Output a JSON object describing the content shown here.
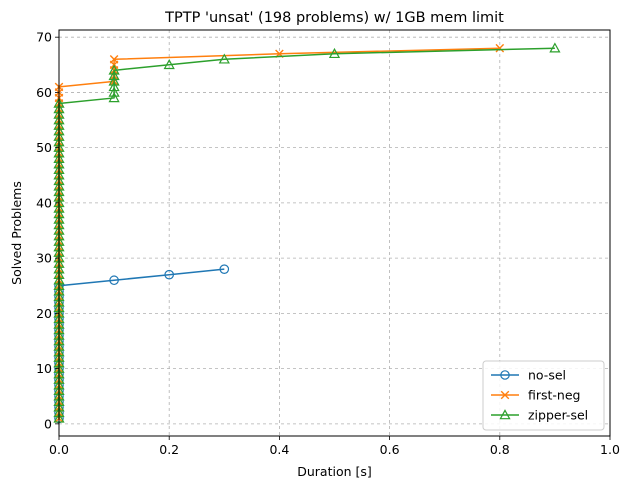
{
  "chart_data": {
    "type": "line",
    "title": "TPTP 'unsat' (198 problems) w/ 1GB mem limit",
    "xlabel": "Duration [s]",
    "ylabel": "Solved Problems",
    "xlim": [
      0.0,
      1.0
    ],
    "ylim": [
      -2.2,
      71.3
    ],
    "xticks": [
      0.0,
      0.2,
      0.4,
      0.6,
      0.8,
      1.0
    ],
    "xtick_labels": [
      "0.0",
      "0.2",
      "0.4",
      "0.6",
      "0.8",
      "1.0"
    ],
    "yticks": [
      0,
      10,
      20,
      30,
      40,
      50,
      60,
      70
    ],
    "ytick_labels": [
      "0",
      "10",
      "20",
      "30",
      "40",
      "50",
      "60",
      "70"
    ],
    "grid": true,
    "legend_position": "lower-right",
    "series": [
      {
        "name": "no-sel",
        "color": "#1f77b4",
        "marker": "circle",
        "x": [
          0,
          0,
          0,
          0,
          0,
          0,
          0,
          0,
          0,
          0,
          0,
          0,
          0,
          0,
          0,
          0,
          0,
          0,
          0,
          0,
          0,
          0,
          0,
          0,
          0,
          0.1,
          0.2,
          0.3
        ],
        "y": [
          1,
          2,
          3,
          4,
          5,
          6,
          7,
          8,
          9,
          10,
          11,
          12,
          13,
          14,
          15,
          16,
          17,
          18,
          19,
          20,
          21,
          22,
          23,
          24,
          25,
          26,
          27,
          28
        ]
      },
      {
        "name": "first-neg",
        "color": "#ff7f0e",
        "marker": "x",
        "x": [
          0,
          0,
          0,
          0,
          0,
          0,
          0,
          0,
          0,
          0,
          0,
          0,
          0,
          0,
          0,
          0,
          0,
          0,
          0,
          0,
          0,
          0,
          0,
          0,
          0,
          0,
          0,
          0,
          0,
          0,
          0,
          0,
          0,
          0,
          0,
          0,
          0,
          0,
          0,
          0,
          0,
          0,
          0,
          0,
          0,
          0,
          0,
          0,
          0,
          0,
          0,
          0,
          0,
          0,
          0,
          0,
          0,
          0,
          0,
          0,
          0,
          0.1,
          0.1,
          0.1,
          0.1,
          0.1,
          0.4,
          0.8
        ],
        "y": [
          1,
          2,
          3,
          4,
          5,
          6,
          7,
          8,
          9,
          10,
          11,
          12,
          13,
          14,
          15,
          16,
          17,
          18,
          19,
          20,
          21,
          22,
          23,
          24,
          25,
          26,
          27,
          28,
          29,
          30,
          31,
          32,
          33,
          34,
          35,
          36,
          37,
          38,
          39,
          40,
          41,
          42,
          43,
          44,
          45,
          46,
          47,
          48,
          49,
          50,
          51,
          52,
          53,
          54,
          55,
          56,
          57,
          58,
          59,
          60,
          61,
          62,
          63,
          64,
          65,
          66,
          67,
          68
        ]
      },
      {
        "name": "zipper-sel",
        "color": "#2ca02c",
        "marker": "triangle",
        "x": [
          0,
          0,
          0,
          0,
          0,
          0,
          0,
          0,
          0,
          0,
          0,
          0,
          0,
          0,
          0,
          0,
          0,
          0,
          0,
          0,
          0,
          0,
          0,
          0,
          0,
          0,
          0,
          0,
          0,
          0,
          0,
          0,
          0,
          0,
          0,
          0,
          0,
          0,
          0,
          0,
          0,
          0,
          0,
          0,
          0,
          0,
          0,
          0,
          0,
          0,
          0,
          0,
          0,
          0,
          0,
          0,
          0,
          0,
          0.1,
          0.1,
          0.1,
          0.1,
          0.1,
          0.1,
          0.2,
          0.3,
          0.5,
          0.9
        ],
        "y": [
          1,
          2,
          3,
          4,
          5,
          6,
          7,
          8,
          9,
          10,
          11,
          12,
          13,
          14,
          15,
          16,
          17,
          18,
          19,
          20,
          21,
          22,
          23,
          24,
          25,
          26,
          27,
          28,
          29,
          30,
          31,
          32,
          33,
          34,
          35,
          36,
          37,
          38,
          39,
          40,
          41,
          42,
          43,
          44,
          45,
          46,
          47,
          48,
          49,
          50,
          51,
          52,
          53,
          54,
          55,
          56,
          57,
          58,
          59,
          60,
          61,
          62,
          63,
          64,
          65,
          66,
          67,
          68
        ]
      }
    ]
  }
}
